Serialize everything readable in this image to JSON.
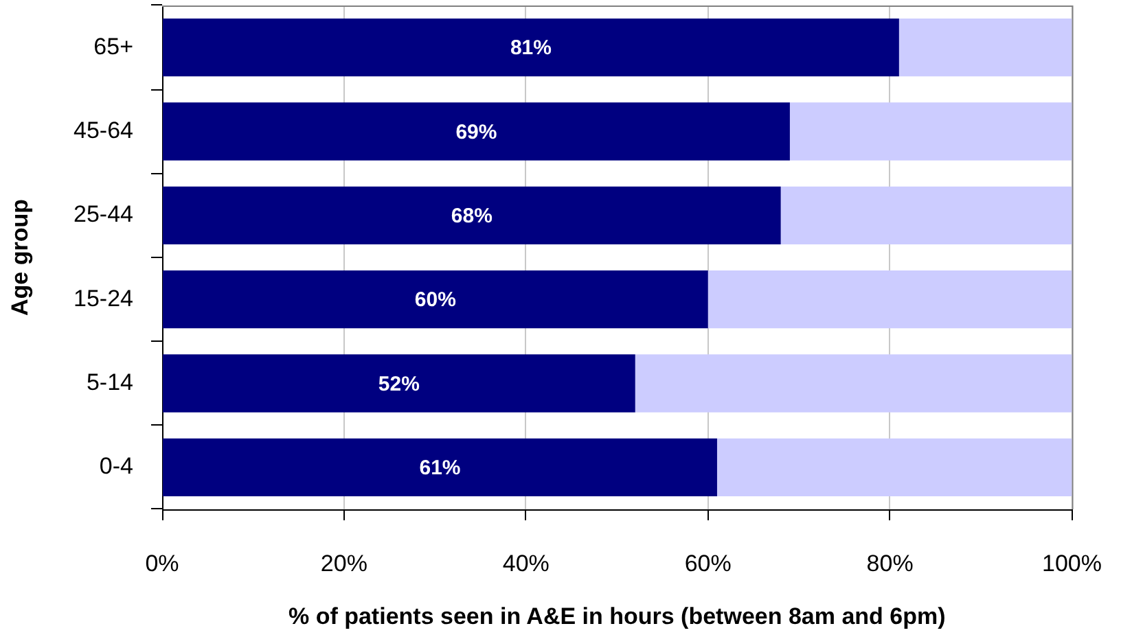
{
  "chart_data": {
    "type": "bar",
    "orientation": "horizontal",
    "stacked": true,
    "xlabel": "% of patients seen in A&E in hours (between 8am and 6pm)",
    "ylabel": "Age group",
    "categories": [
      "65+",
      "45-64",
      "25-44",
      "15-24",
      "5-14",
      "0-4"
    ],
    "series": [
      {
        "color": "#000080",
        "values": [
          81,
          69,
          68,
          60,
          52,
          61
        ],
        "value_labels": [
          "81%",
          "69%",
          "68%",
          "60%",
          "52%",
          "61%"
        ]
      },
      {
        "color": "#ccccff",
        "values": [
          19,
          31,
          32,
          40,
          48,
          39
        ]
      }
    ],
    "xlim": [
      0,
      100
    ],
    "xticks": [
      {
        "value": 0,
        "label": "0%"
      },
      {
        "value": 20,
        "label": "20%"
      },
      {
        "value": 40,
        "label": "40%"
      },
      {
        "value": 60,
        "label": "60%"
      },
      {
        "value": 80,
        "label": "80%"
      },
      {
        "value": 100,
        "label": "100%"
      }
    ],
    "grid": "x"
  }
}
